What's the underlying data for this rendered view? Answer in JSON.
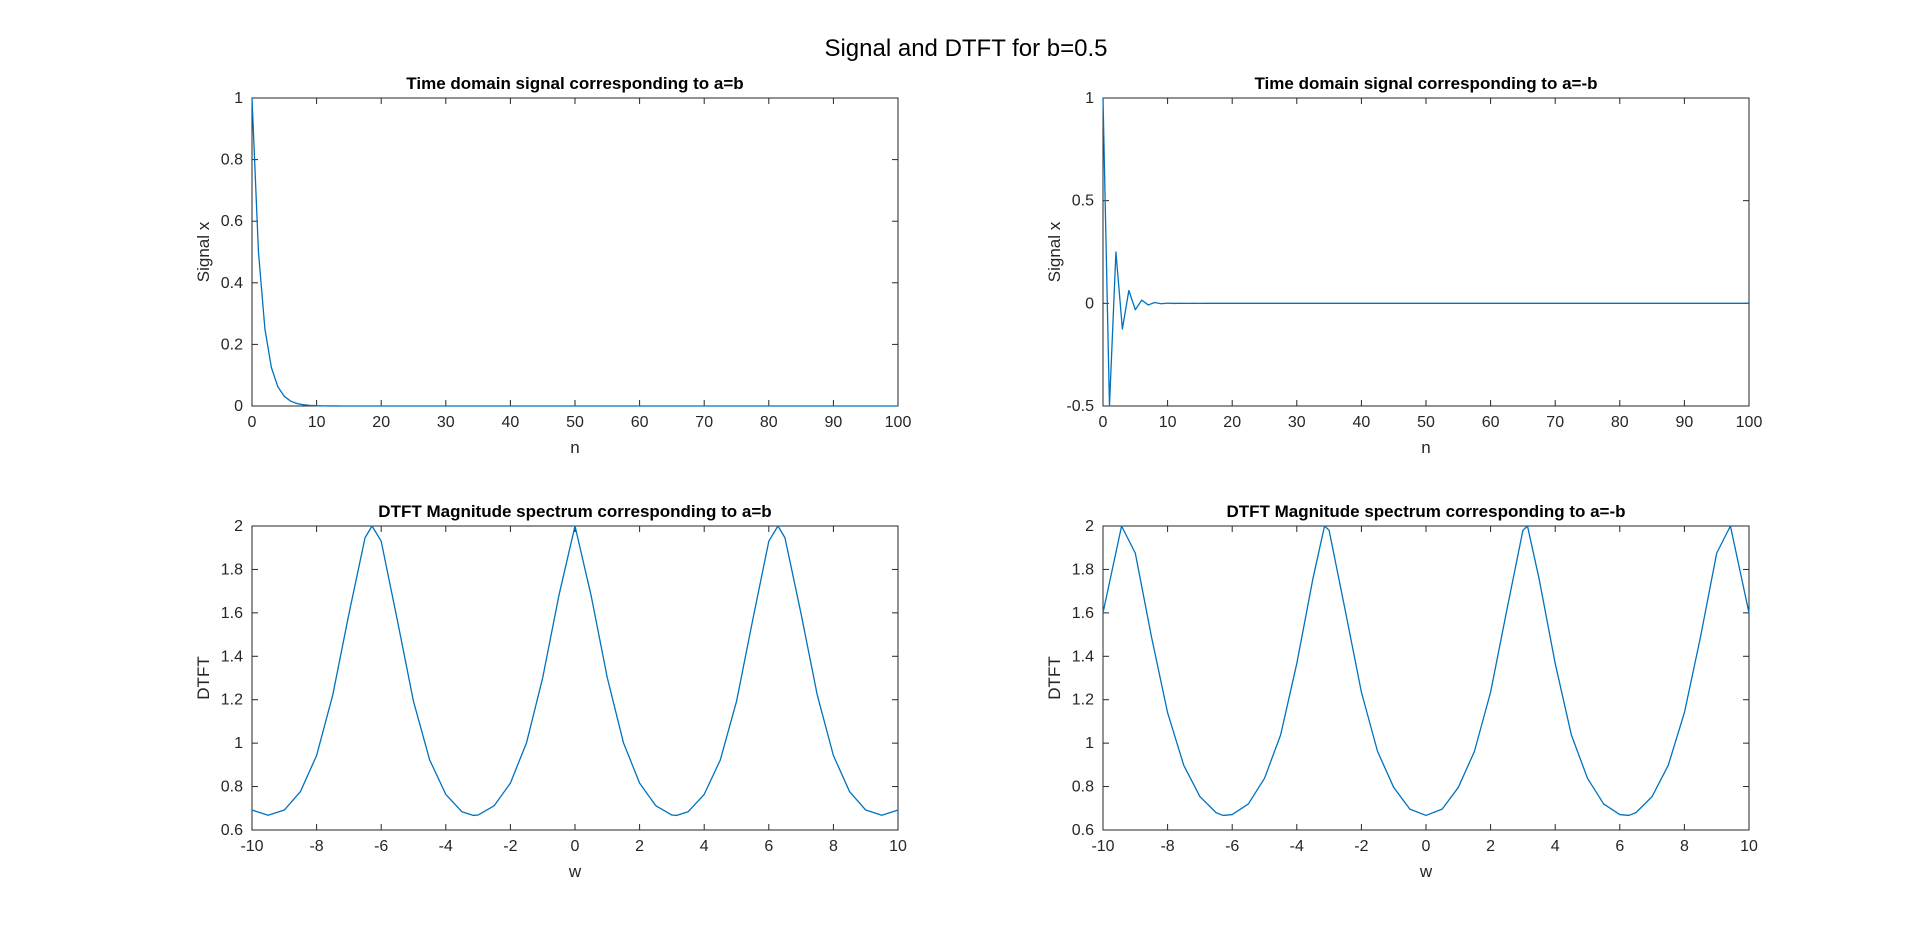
{
  "figure": {
    "suptitle": "Signal and DTFT for b=0.5"
  },
  "colors": {
    "series": "#0072BD",
    "axes": "#262626",
    "background": "#ffffff"
  },
  "chart_data": [
    {
      "type": "line",
      "title": "Time domain signal corresponding to a=b",
      "xlabel": "n",
      "ylabel": "Signal x",
      "xlim": [
        0,
        100
      ],
      "ylim": [
        0,
        1
      ],
      "xticks": [
        "0",
        "10",
        "20",
        "30",
        "40",
        "50",
        "60",
        "70",
        "80",
        "90",
        "100"
      ],
      "yticks": [
        "0",
        "0.2",
        "0.4",
        "0.6",
        "0.8",
        "1"
      ],
      "grid": false,
      "series": [
        {
          "x": [
            0,
            1,
            2,
            3,
            4,
            5,
            6,
            7,
            8,
            9,
            10,
            11,
            12,
            13,
            14,
            15,
            16,
            17,
            18,
            19,
            20,
            21,
            22,
            23,
            24,
            25,
            26,
            27,
            28,
            29,
            30,
            31,
            32,
            33,
            34,
            35,
            36,
            37,
            38,
            39,
            40,
            41,
            42,
            43,
            44,
            45,
            46,
            47,
            48,
            49,
            50,
            51,
            52,
            53,
            54,
            55,
            56,
            57,
            58,
            59,
            60,
            61,
            62,
            63,
            64,
            65,
            66,
            67,
            68,
            69,
            70,
            71,
            72,
            73,
            74,
            75,
            76,
            77,
            78,
            79,
            80,
            81,
            82,
            83,
            84,
            85,
            86,
            87,
            88,
            89,
            90,
            91,
            92,
            93,
            94,
            95,
            96,
            97,
            98,
            99,
            100
          ],
          "y": [
            1,
            0.5,
            0.25,
            0.125,
            0.0625,
            0.03125,
            0.015625,
            0.0078125,
            0.00390625,
            0.001953125,
            0.0009765625,
            0.00048828125,
            0.000244140625,
            0.0001220703125,
            6.103515625e-05,
            3.0517578125e-05,
            1.52587890625e-05,
            0,
            0,
            0,
            0,
            0,
            0,
            0,
            0,
            0,
            0,
            0,
            0,
            0,
            0,
            0,
            0,
            0,
            0,
            0,
            0,
            0,
            0,
            0,
            0,
            0,
            0,
            0,
            0,
            0,
            0,
            0,
            0,
            0,
            0,
            0,
            0,
            0,
            0,
            0,
            0,
            0,
            0,
            0,
            0,
            0,
            0,
            0,
            0,
            0,
            0,
            0,
            0,
            0,
            0,
            0,
            0,
            0,
            0,
            0,
            0,
            0,
            0,
            0,
            0,
            0,
            0,
            0,
            0,
            0,
            0,
            0,
            0,
            0,
            0,
            0,
            0,
            0,
            0,
            0,
            0,
            0,
            0,
            0,
            0
          ]
        }
      ]
    },
    {
      "type": "line",
      "title": "Time domain signal corresponding to a=-b",
      "xlabel": "n",
      "ylabel": "Signal x",
      "xlim": [
        0,
        100
      ],
      "ylim": [
        -0.5,
        1
      ],
      "xticks": [
        "0",
        "10",
        "20",
        "30",
        "40",
        "50",
        "60",
        "70",
        "80",
        "90",
        "100"
      ],
      "yticks": [
        "-0.5",
        "0",
        "0.5",
        "1"
      ],
      "grid": false,
      "series": [
        {
          "x": [
            0,
            1,
            2,
            3,
            4,
            5,
            6,
            7,
            8,
            9,
            10,
            11,
            12,
            13,
            14,
            15,
            16,
            17,
            18,
            19,
            20,
            21,
            22,
            23,
            24,
            25,
            26,
            27,
            28,
            29,
            30,
            31,
            32,
            33,
            34,
            35,
            36,
            37,
            38,
            39,
            40,
            41,
            42,
            43,
            44,
            45,
            46,
            47,
            48,
            49,
            50,
            51,
            52,
            53,
            54,
            55,
            56,
            57,
            58,
            59,
            60,
            61,
            62,
            63,
            64,
            65,
            66,
            67,
            68,
            69,
            70,
            71,
            72,
            73,
            74,
            75,
            76,
            77,
            78,
            79,
            80,
            81,
            82,
            83,
            84,
            85,
            86,
            87,
            88,
            89,
            90,
            91,
            92,
            93,
            94,
            95,
            96,
            97,
            98,
            99,
            100
          ],
          "y": [
            1,
            -0.5,
            0.25,
            -0.125,
            0.0625,
            -0.03125,
            0.015625,
            -0.0078125,
            0.00390625,
            -0.001953125,
            0.0009765625,
            -0.00048828125,
            0.000244140625,
            -0.0001220703125,
            6.103515625e-05,
            -3.0517578125e-05,
            1.52587890625e-05,
            0,
            0,
            0,
            0,
            0,
            0,
            0,
            0,
            0,
            0,
            0,
            0,
            0,
            0,
            0,
            0,
            0,
            0,
            0,
            0,
            0,
            0,
            0,
            0,
            0,
            0,
            0,
            0,
            0,
            0,
            0,
            0,
            0,
            0,
            0,
            0,
            0,
            0,
            0,
            0,
            0,
            0,
            0,
            0,
            0,
            0,
            0,
            0,
            0,
            0,
            0,
            0,
            0,
            0,
            0,
            0,
            0,
            0,
            0,
            0,
            0,
            0,
            0,
            0,
            0,
            0,
            0,
            0,
            0,
            0,
            0,
            0,
            0,
            0,
            0,
            0,
            0,
            0,
            0,
            0,
            0,
            0,
            0,
            0
          ]
        }
      ]
    },
    {
      "type": "line",
      "title": "DTFT Magnitude spectrum corresponding to a=b",
      "xlabel": "w",
      "ylabel": "DTFT",
      "xlim": [
        -10,
        10
      ],
      "ylim": [
        0.6,
        2
      ],
      "xticks": [
        "-10",
        "-8",
        "-6",
        "-4",
        "-2",
        "0",
        "2",
        "4",
        "6",
        "8",
        "10"
      ],
      "yticks": [
        "0.6",
        "0.8",
        "1",
        "1.2",
        "1.4",
        "1.6",
        "1.8",
        "2"
      ],
      "grid": false,
      "series": [
        {
          "x": [
            -10,
            -9.5,
            -9,
            -8.5,
            -8,
            -7.5,
            -7,
            -6.5,
            -6.2832,
            -6,
            -5.5,
            -5,
            -4.5,
            -4,
            -3.5,
            -3.1416,
            -3,
            -2.5,
            -2,
            -1.5,
            -1,
            -0.5,
            0,
            0.5,
            1,
            1.5,
            2,
            2.5,
            3,
            3.1416,
            3.5,
            4,
            4.5,
            5,
            5.5,
            6,
            6.2832,
            6.5,
            7,
            7.5,
            8,
            8.5,
            9,
            9.5,
            10
          ],
          "y": [
            0.692,
            0.668,
            0.692,
            0.777,
            0.943,
            1.222,
            1.595,
            1.946,
            2.0,
            1.93,
            1.566,
            1.192,
            0.923,
            0.764,
            0.684,
            0.667,
            0.669,
            0.712,
            0.816,
            1.002,
            1.301,
            1.679,
            2.0,
            1.679,
            1.301,
            1.002,
            0.816,
            0.712,
            0.669,
            0.667,
            0.684,
            0.764,
            0.923,
            1.192,
            1.566,
            1.93,
            2.0,
            1.946,
            1.595,
            1.222,
            0.943,
            0.777,
            0.692,
            0.668,
            0.692
          ]
        }
      ]
    },
    {
      "type": "line",
      "title": "DTFT Magnitude spectrum corresponding to a=-b",
      "xlabel": "w",
      "ylabel": "DTFT",
      "xlim": [
        -10,
        10
      ],
      "ylim": [
        0.6,
        2
      ],
      "xticks": [
        "-10",
        "-8",
        "-6",
        "-4",
        "-2",
        "0",
        "2",
        "4",
        "6",
        "8",
        "10"
      ],
      "yticks": [
        "0.6",
        "0.8",
        "1",
        "1.2",
        "1.4",
        "1.6",
        "1.8",
        "2"
      ],
      "grid": false,
      "series": [
        {
          "x": [
            -10,
            -9.4248,
            -9,
            -8.5,
            -8,
            -7.5,
            -7,
            -6.5,
            -6.2832,
            -6,
            -5.5,
            -5,
            -4.5,
            -4,
            -3.5,
            -3.1416,
            -3,
            -2.5,
            -2,
            -1.5,
            -1,
            -0.5,
            0,
            0.5,
            1,
            1.5,
            2,
            2.5,
            3,
            3.1416,
            3.5,
            4,
            4.5,
            5,
            5.5,
            6,
            6.2832,
            6.5,
            7,
            7.5,
            8,
            8.5,
            9,
            9.4248,
            10
          ],
          "y": [
            1.6,
            2.0,
            1.875,
            1.49,
            1.14,
            0.898,
            0.754,
            0.68,
            0.667,
            0.671,
            0.72,
            0.838,
            1.038,
            1.367,
            1.758,
            2.0,
            1.98,
            1.611,
            1.235,
            0.962,
            0.796,
            0.696,
            0.667,
            0.696,
            0.796,
            0.962,
            1.235,
            1.611,
            1.98,
            2.0,
            1.758,
            1.367,
            1.038,
            0.838,
            0.72,
            0.671,
            0.667,
            0.68,
            0.754,
            0.898,
            1.14,
            1.49,
            1.875,
            2.0,
            1.6
          ]
        }
      ]
    }
  ]
}
